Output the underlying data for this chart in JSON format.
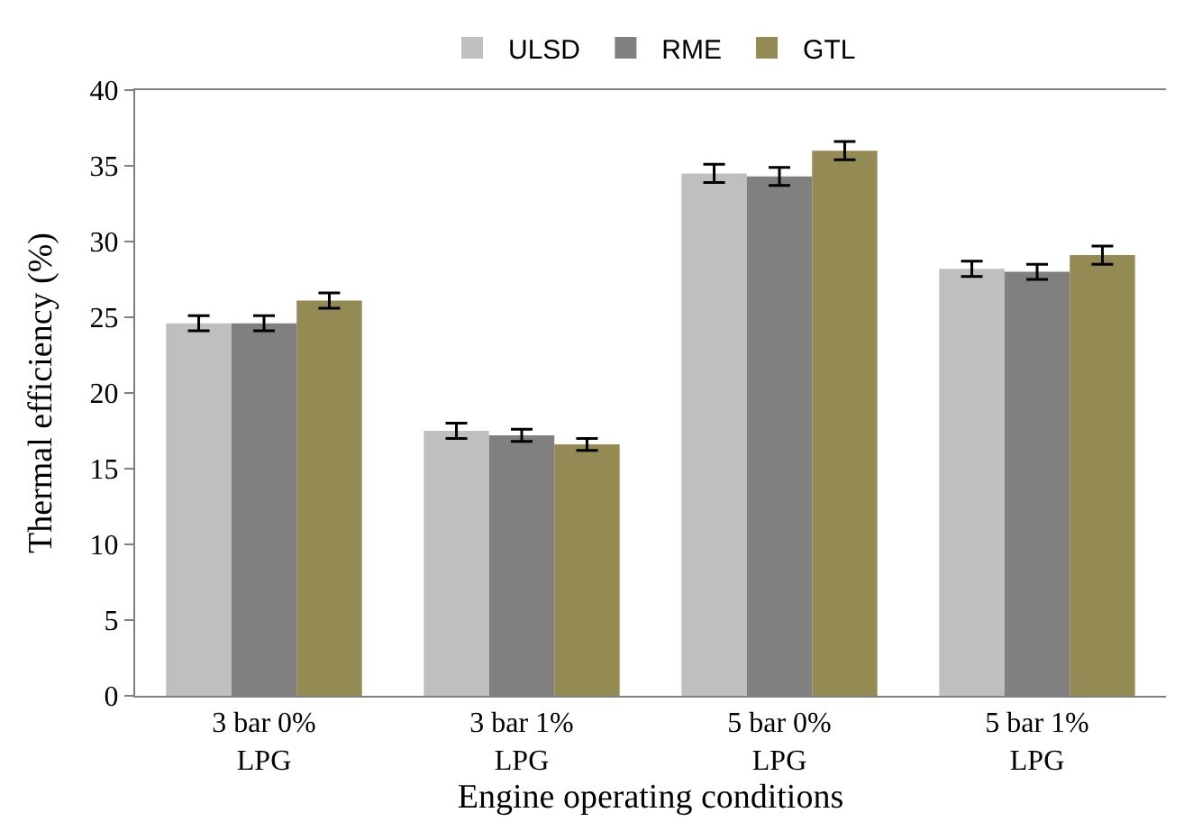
{
  "chart_data": {
    "type": "bar",
    "xlabel": "Engine operating conditions",
    "ylabel": "Thermal efficiency (%)",
    "categories": [
      "3 bar 0%\nLPG",
      "3 bar 1%\nLPG",
      "5 bar 0%\nLPG",
      "5 bar 1%\nLPG"
    ],
    "series": [
      {
        "name": "ULSD",
        "color": "#bfbfbf",
        "values": [
          24.6,
          17.5,
          34.5,
          28.2
        ],
        "errors": [
          0.5,
          0.5,
          0.6,
          0.5
        ]
      },
      {
        "name": "RME",
        "color": "#808080",
        "values": [
          24.6,
          17.2,
          34.3,
          28.0
        ],
        "errors": [
          0.5,
          0.4,
          0.6,
          0.5
        ]
      },
      {
        "name": "GTL",
        "color": "#948a54",
        "values": [
          26.1,
          16.6,
          36.0,
          29.1
        ],
        "errors": [
          0.5,
          0.4,
          0.6,
          0.6
        ]
      }
    ],
    "ylim": [
      0,
      40
    ],
    "yticks": [
      0,
      5,
      10,
      15,
      20,
      25,
      30,
      35,
      40
    ],
    "legend": "top"
  }
}
